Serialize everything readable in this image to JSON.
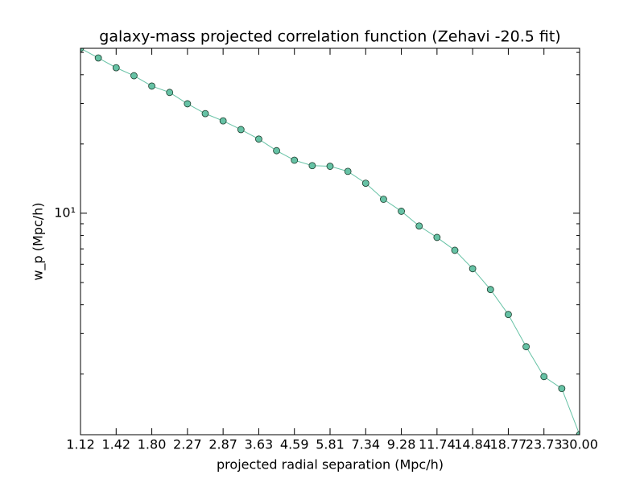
{
  "chart_data": {
    "type": "line",
    "title": "galaxy-mass projected correlation function (Zehavi -20.5 fit)",
    "x_label": "projected radial separation (Mpc/h)",
    "y_label": "w_p (Mpc/h)",
    "categories": [
      "1.12",
      null,
      "1.42",
      null,
      "1.80",
      null,
      "2.27",
      null,
      "2.87",
      null,
      "3.63",
      null,
      "4.59",
      null,
      "5.81",
      null,
      "7.34",
      null,
      "9.28",
      null,
      "11.74",
      null,
      "14.84",
      null,
      "18.77",
      null,
      "23.73",
      null,
      "30.00"
    ],
    "values": [
      52.1,
      47.3,
      42.9,
      39.6,
      35.7,
      33.5,
      29.9,
      27.1,
      25.2,
      23.1,
      21.0,
      18.7,
      17.0,
      16.1,
      16.0,
      15.2,
      13.5,
      11.5,
      10.2,
      8.8,
      7.85,
      6.9,
      5.74,
      4.66,
      3.63,
      2.63,
      1.95,
      1.73,
      1.09
    ],
    "color": "#66c2a5",
    "log_y": true,
    "ylim": [
      1.09,
      52.1
    ],
    "yticks": [
      {
        "value": 10,
        "label": "10¹"
      }
    ],
    "yminor_ticks": [
      2,
      3,
      4,
      5,
      6,
      7,
      8,
      9,
      20,
      30,
      40,
      50
    ]
  }
}
